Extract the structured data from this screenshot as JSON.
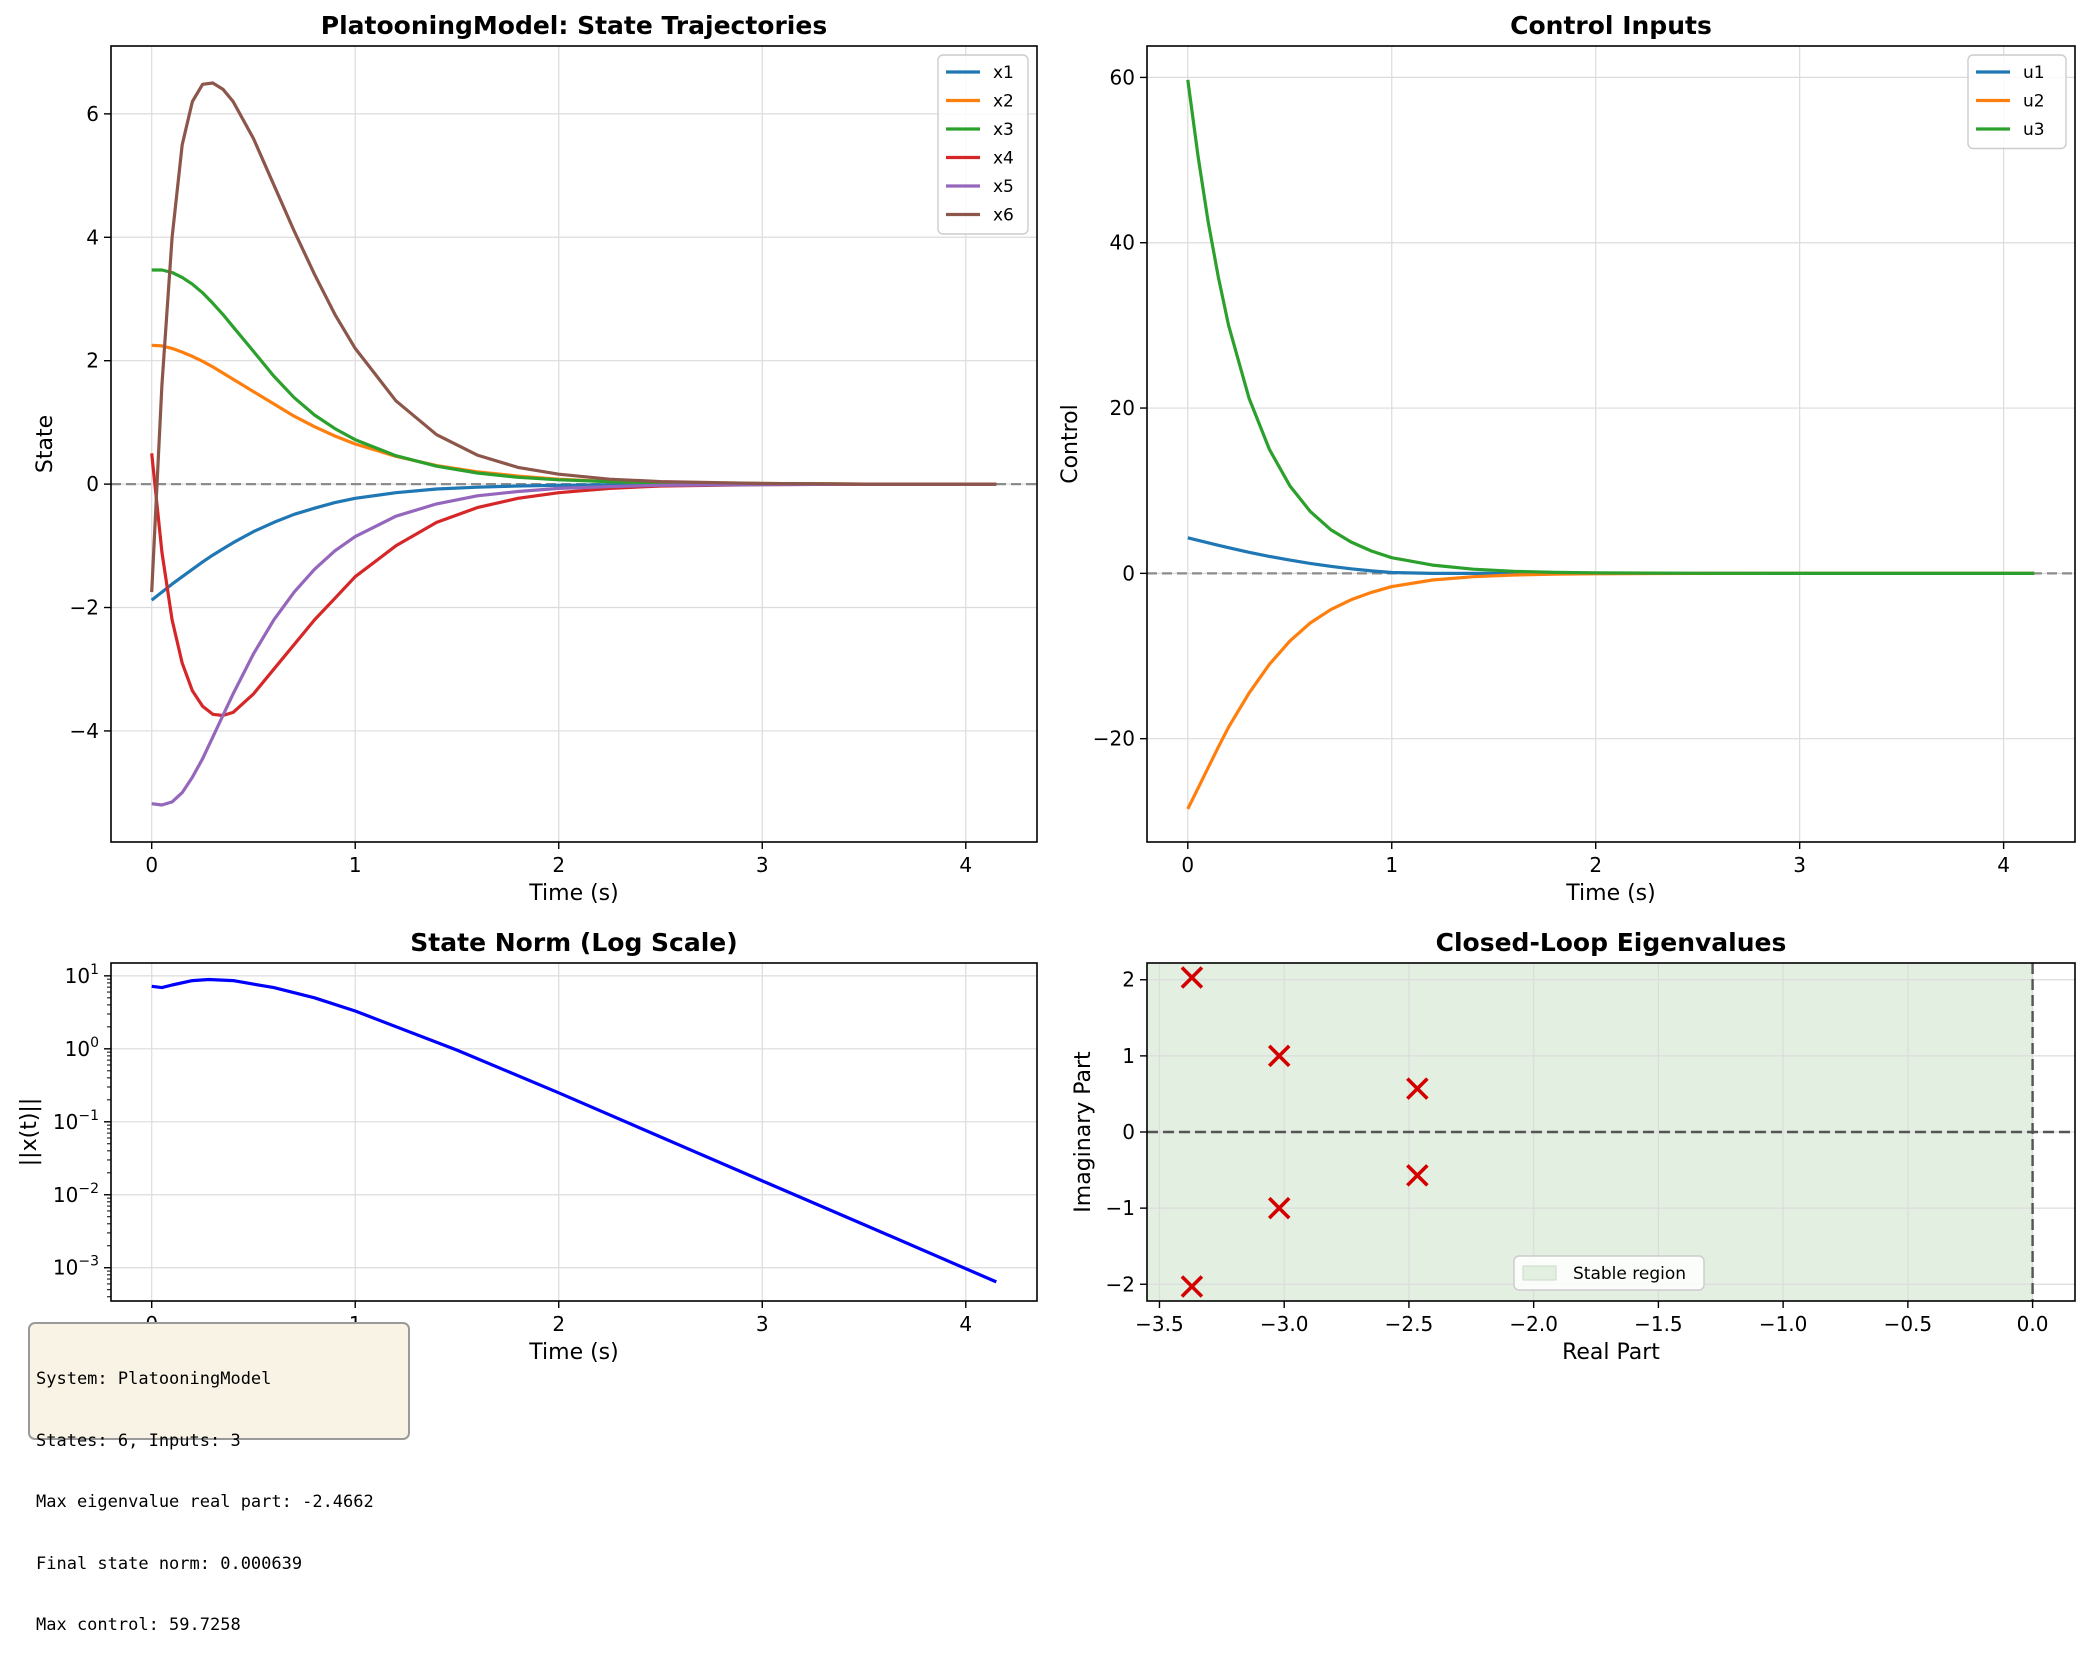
{
  "chart_data": [
    {
      "type": "line",
      "title": "PlatooningModel: State Trajectories",
      "xlabel": "Time (s)",
      "ylabel": "State",
      "xlim": [
        -0.2,
        4.35
      ],
      "ylim": [
        -5.8,
        7.1
      ],
      "xticks": [
        0,
        1,
        2,
        3,
        4
      ],
      "yticks": [
        -4,
        -2,
        0,
        2,
        4,
        6
      ],
      "grid": true,
      "legend": "top-right",
      "zero_line": true,
      "x": [
        0,
        0.05,
        0.1,
        0.15,
        0.2,
        0.25,
        0.3,
        0.35,
        0.4,
        0.5,
        0.6,
        0.7,
        0.8,
        0.9,
        1.0,
        1.2,
        1.4,
        1.6,
        1.8,
        2.0,
        2.25,
        2.5,
        3.0,
        3.5,
        4.15
      ],
      "series": [
        {
          "name": "x1",
          "color": "#1f77b4",
          "values": [
            -1.88,
            -1.75,
            -1.62,
            -1.5,
            -1.38,
            -1.26,
            -1.15,
            -1.05,
            -0.95,
            -0.77,
            -0.62,
            -0.49,
            -0.39,
            -0.3,
            -0.23,
            -0.14,
            -0.08,
            -0.05,
            -0.03,
            -0.02,
            -0.01,
            0,
            0,
            0,
            0
          ]
        },
        {
          "name": "x2",
          "color": "#ff7f0e",
          "values": [
            2.25,
            2.24,
            2.2,
            2.14,
            2.07,
            1.99,
            1.9,
            1.8,
            1.7,
            1.5,
            1.3,
            1.1,
            0.93,
            0.78,
            0.65,
            0.45,
            0.3,
            0.2,
            0.13,
            0.08,
            0.04,
            0.02,
            0.01,
            0,
            0
          ]
        },
        {
          "name": "x3",
          "color": "#2ca02c",
          "values": [
            3.47,
            3.47,
            3.43,
            3.35,
            3.24,
            3.1,
            2.93,
            2.75,
            2.55,
            2.15,
            1.75,
            1.4,
            1.12,
            0.9,
            0.72,
            0.46,
            0.29,
            0.18,
            0.11,
            0.07,
            0.04,
            0.02,
            0.01,
            0,
            0
          ]
        },
        {
          "name": "x4",
          "color": "#d62728",
          "values": [
            0.5,
            -1.1,
            -2.2,
            -2.9,
            -3.35,
            -3.6,
            -3.73,
            -3.75,
            -3.7,
            -3.4,
            -3.0,
            -2.6,
            -2.2,
            -1.85,
            -1.5,
            -1.0,
            -0.62,
            -0.38,
            -0.23,
            -0.14,
            -0.07,
            -0.03,
            -0.01,
            0,
            0
          ]
        },
        {
          "name": "x5",
          "color": "#9467bd",
          "values": [
            -5.18,
            -5.2,
            -5.15,
            -5.0,
            -4.75,
            -4.45,
            -4.1,
            -3.75,
            -3.4,
            -2.75,
            -2.2,
            -1.75,
            -1.38,
            -1.08,
            -0.85,
            -0.52,
            -0.32,
            -0.19,
            -0.12,
            -0.07,
            -0.04,
            -0.02,
            -0.01,
            0,
            0
          ]
        },
        {
          "name": "x6",
          "color": "#8c564b",
          "values": [
            -1.75,
            1.6,
            4.0,
            5.5,
            6.2,
            6.48,
            6.5,
            6.4,
            6.2,
            5.6,
            4.85,
            4.1,
            3.4,
            2.75,
            2.2,
            1.35,
            0.8,
            0.47,
            0.27,
            0.16,
            0.08,
            0.04,
            0.01,
            0,
            0
          ]
        }
      ]
    },
    {
      "type": "line",
      "title": "Control Inputs",
      "xlabel": "Time (s)",
      "ylabel": "Control",
      "xlim": [
        -0.2,
        4.35
      ],
      "ylim": [
        -32.5,
        63.8
      ],
      "xticks": [
        0,
        1,
        2,
        3,
        4
      ],
      "yticks": [
        -20,
        0,
        20,
        40,
        60
      ],
      "grid": true,
      "legend": "top-right",
      "zero_line": true,
      "x": [
        0,
        0.05,
        0.1,
        0.15,
        0.2,
        0.3,
        0.4,
        0.5,
        0.6,
        0.7,
        0.8,
        0.9,
        1.0,
        1.2,
        1.4,
        1.6,
        1.8,
        2.0,
        2.5,
        3.0,
        3.5,
        4.15
      ],
      "series": [
        {
          "name": "u1",
          "color": "#1f77b4",
          "values": [
            4.3,
            4.0,
            3.7,
            3.4,
            3.1,
            2.55,
            2.05,
            1.6,
            1.2,
            0.85,
            0.55,
            0.3,
            0.1,
            0,
            0,
            0,
            0,
            0,
            0,
            0,
            0,
            0
          ]
        },
        {
          "name": "u2",
          "color": "#ff7f0e",
          "values": [
            -28.5,
            -26.0,
            -23.5,
            -21.0,
            -18.6,
            -14.5,
            -11.0,
            -8.2,
            -6.0,
            -4.4,
            -3.2,
            -2.3,
            -1.6,
            -0.8,
            -0.4,
            -0.2,
            -0.1,
            -0.05,
            0,
            0,
            0,
            0
          ]
        },
        {
          "name": "u3",
          "color": "#2ca02c",
          "values": [
            59.7,
            50.5,
            42.5,
            35.8,
            30.0,
            21.2,
            15.0,
            10.6,
            7.5,
            5.3,
            3.8,
            2.7,
            1.9,
            1.0,
            0.5,
            0.25,
            0.12,
            0.06,
            0.01,
            0,
            0,
            0
          ]
        }
      ]
    },
    {
      "type": "line",
      "title": "State Norm (Log Scale)",
      "xlabel": "Time (s)",
      "ylabel": "||x(t)||",
      "yscale": "log",
      "xlim": [
        -0.2,
        4.35
      ],
      "ylim": [
        0.00035,
        15
      ],
      "xticks": [
        0,
        1,
        2,
        3,
        4
      ],
      "yticks": [
        "10^1",
        "10^0",
        "10^-1",
        "10^-2",
        "10^-3"
      ],
      "grid": true,
      "x": [
        0,
        0.05,
        0.1,
        0.2,
        0.28,
        0.4,
        0.6,
        0.8,
        1.0,
        1.5,
        2.0,
        2.5,
        3.0,
        3.5,
        4.15
      ],
      "series": [
        {
          "color": "#0000ff",
          "values": [
            7.2,
            6.9,
            7.5,
            8.6,
            8.9,
            8.6,
            6.9,
            5.0,
            3.3,
            0.96,
            0.25,
            0.062,
            0.0155,
            0.0039,
            0.000639
          ]
        }
      ]
    },
    {
      "type": "scatter",
      "title": "Closed-Loop Eigenvalues",
      "xlabel": "Real Part",
      "ylabel": "Imaginary Part",
      "xlim": [
        -3.55,
        0.17
      ],
      "ylim": [
        -2.22,
        2.22
      ],
      "xticks": [
        -3.5,
        -3.0,
        -2.5,
        -2.0,
        -1.5,
        -1.0,
        -0.5,
        0.0
      ],
      "yticks": [
        -2,
        -1,
        0,
        1,
        2
      ],
      "grid": true,
      "legend": "bottom-center",
      "stable_region_label": "Stable region",
      "stable_region_color": "#e3efe1",
      "marker_color": "#d40000",
      "points": [
        {
          "x": -3.37,
          "y": 2.03
        },
        {
          "x": -3.37,
          "y": -2.03
        },
        {
          "x": -3.02,
          "y": 1.0
        },
        {
          "x": -3.02,
          "y": -1.0
        },
        {
          "x": -2.4662,
          "y": 0.57
        },
        {
          "x": -2.4662,
          "y": -0.57
        }
      ]
    }
  ],
  "info": {
    "line1": "System: PlatooningModel",
    "line2": "States: 6, Inputs: 3",
    "line3": "Max eigenvalue real part: -2.4662",
    "line4": "Final state norm: 0.000639",
    "line5": "Max control: 59.7258"
  }
}
